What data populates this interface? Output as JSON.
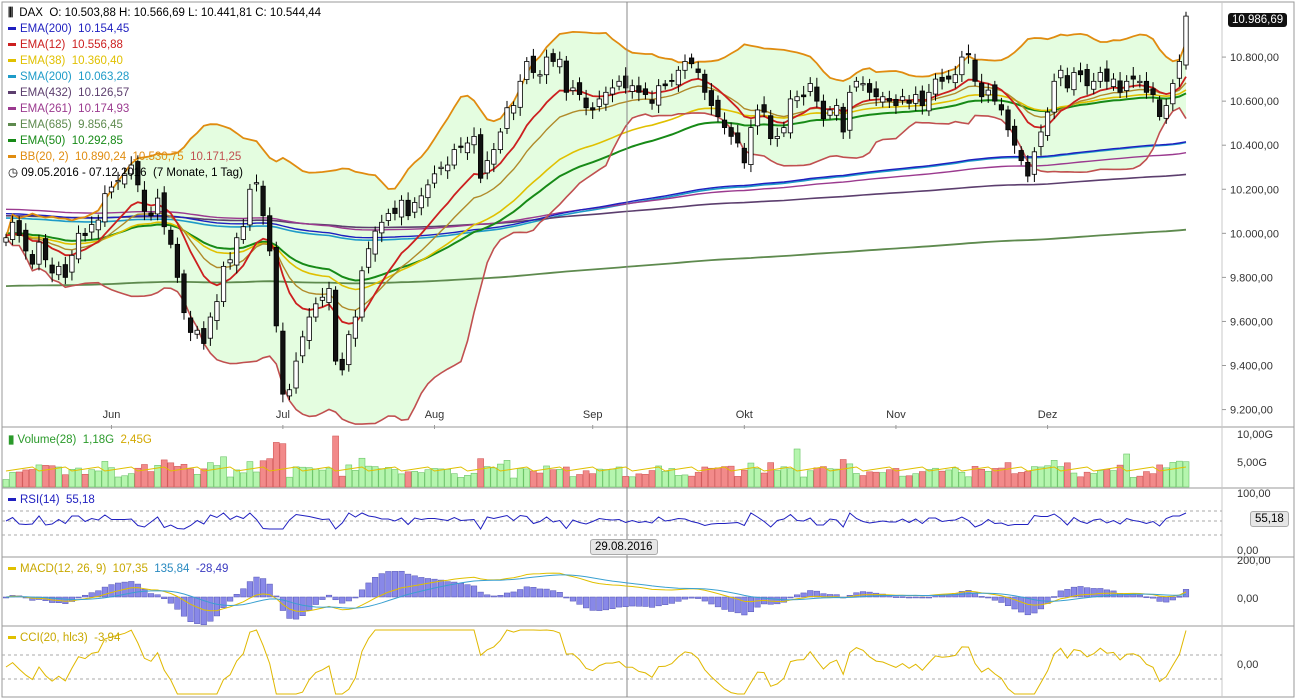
{
  "header": {
    "symbol": "DAX",
    "ohlc": "O: 10.503,88  H: 10.566,69  L: 10.441,81  C: 10.544,44",
    "range": "09.05.2016 - 07.12.2016",
    "range_note": "(7 Monate, 1 Tag)"
  },
  "legend": [
    {
      "label": "EMA(200)",
      "value": "10.154,45",
      "color": "#1f1fbf"
    },
    {
      "label": "EMA(12)",
      "value": "10.556,88",
      "color": "#cc1f1f"
    },
    {
      "label": "EMA(38)",
      "value": "10.360,40",
      "color": "#e0c000"
    },
    {
      "label": "SMA(200)",
      "value": "10.063,28",
      "color": "#1e9bc8"
    },
    {
      "label": "EMA(432)",
      "value": "10.126,57",
      "color": "#5c3e6e"
    },
    {
      "label": "EMA(261)",
      "value": "10.174,93",
      "color": "#9b3a8f"
    },
    {
      "label": "EMA(685)",
      "value": "9.856,45",
      "color": "#5e8a4e"
    },
    {
      "label": "EMA(50)",
      "value": "10.292,85",
      "color": "#178a17"
    }
  ],
  "bb_legend": {
    "label": "BB(20, 2)",
    "v1": "10.890,24",
    "v2": "10.530,75",
    "v3": "10.171,25",
    "color": "#e08c10",
    "color3": "#c05050"
  },
  "last_price_badge": "10.986,69",
  "crosshair_date": "29.08.2016",
  "panels": {
    "volume": {
      "label": "Volume(28)",
      "v1": "1,18G",
      "v2": "2,45G",
      "ticks": [
        "10,00G",
        "5,00G"
      ]
    },
    "rsi": {
      "label": "RSI(14)",
      "value": "55,18",
      "badge": "55,18",
      "ticks": [
        "100,00",
        "0,00"
      ]
    },
    "macd": {
      "label": "MACD(12, 26, 9)",
      "v1": "107,35",
      "v2": "135,84",
      "v3": "-28,49",
      "ticks": [
        "200,00",
        "0,00"
      ]
    },
    "cci": {
      "label": "CCI(20, hlc3)",
      "value": "-3,94",
      "ticks": [
        "0,00"
      ]
    }
  },
  "chart_data": {
    "type": "candlestick",
    "x_tick_labels": [
      "Jun",
      "Jul",
      "Aug",
      "Sep",
      "Okt",
      "Nov",
      "Dez"
    ],
    "y_tick_labels": [
      "10.800,00",
      "10.600,00",
      "10.400,00",
      "10.200,00",
      "10.000,00",
      "9.800,00",
      "9.600,00",
      "9.400,00",
      "9.200,00"
    ],
    "ylim": [
      9130,
      11050
    ],
    "grid": false,
    "closes": [
      9980,
      10050,
      9990,
      9920,
      9860,
      9960,
      9880,
      9820,
      9850,
      9800,
      9900,
      10000,
      9990,
      10040,
      10060,
      10180,
      10210,
      10240,
      10270,
      10310,
      10220,
      10100,
      10080,
      10160,
      10030,
      9950,
      9800,
      9640,
      9550,
      9560,
      9500,
      9620,
      9690,
      9850,
      9880,
      9980,
      10030,
      10200,
      10230,
      10080,
      9920,
      9580,
      9270,
      9290,
      9420,
      9530,
      9620,
      9680,
      9710,
      9750,
      9420,
      9380,
      9540,
      9620,
      9830,
      9930,
      10010,
      10050,
      10090,
      10090,
      10150,
      10080,
      10140,
      10170,
      10220,
      10270,
      10300,
      10310,
      10380,
      10390,
      10410,
      10440,
      10250,
      10330,
      10380,
      10460,
      10570,
      10580,
      10690,
      10780,
      10730,
      10720,
      10800,
      10780,
      10790,
      10640,
      10660,
      10630,
      10570,
      10560,
      10610,
      10640,
      10660,
      10690,
      10660,
      10670,
      10640,
      10630,
      10590,
      10670,
      10670,
      10690,
      10740,
      10780,
      10770,
      10730,
      10640,
      10580,
      10530,
      10480,
      10440,
      10410,
      10320,
      10480,
      10560,
      10550,
      10430,
      10440,
      10480,
      10610,
      10620,
      10620,
      10680,
      10600,
      10520,
      10560,
      10580,
      10460,
      10640,
      10690,
      10680,
      10640,
      10620,
      10620,
      10600,
      10580,
      10620,
      10590,
      10630,
      10580,
      10640,
      10700,
      10690,
      10700,
      10720,
      10800,
      10810,
      10690,
      10620,
      10650,
      10600,
      10560,
      10470,
      10400,
      10330,
      10260,
      10370,
      10460,
      10550,
      10690,
      10740,
      10660,
      10730,
      10720,
      10670,
      10690,
      10730,
      10690,
      10700,
      10640,
      10690,
      10700,
      10690,
      10640,
      10630,
      10530,
      10580,
      10680,
      10780,
      10986
    ],
    "panels": [
      "Volume(28)",
      "RSI(14)",
      "MACD(12, 26, 9)",
      "CCI(20, hlc3)"
    ]
  }
}
